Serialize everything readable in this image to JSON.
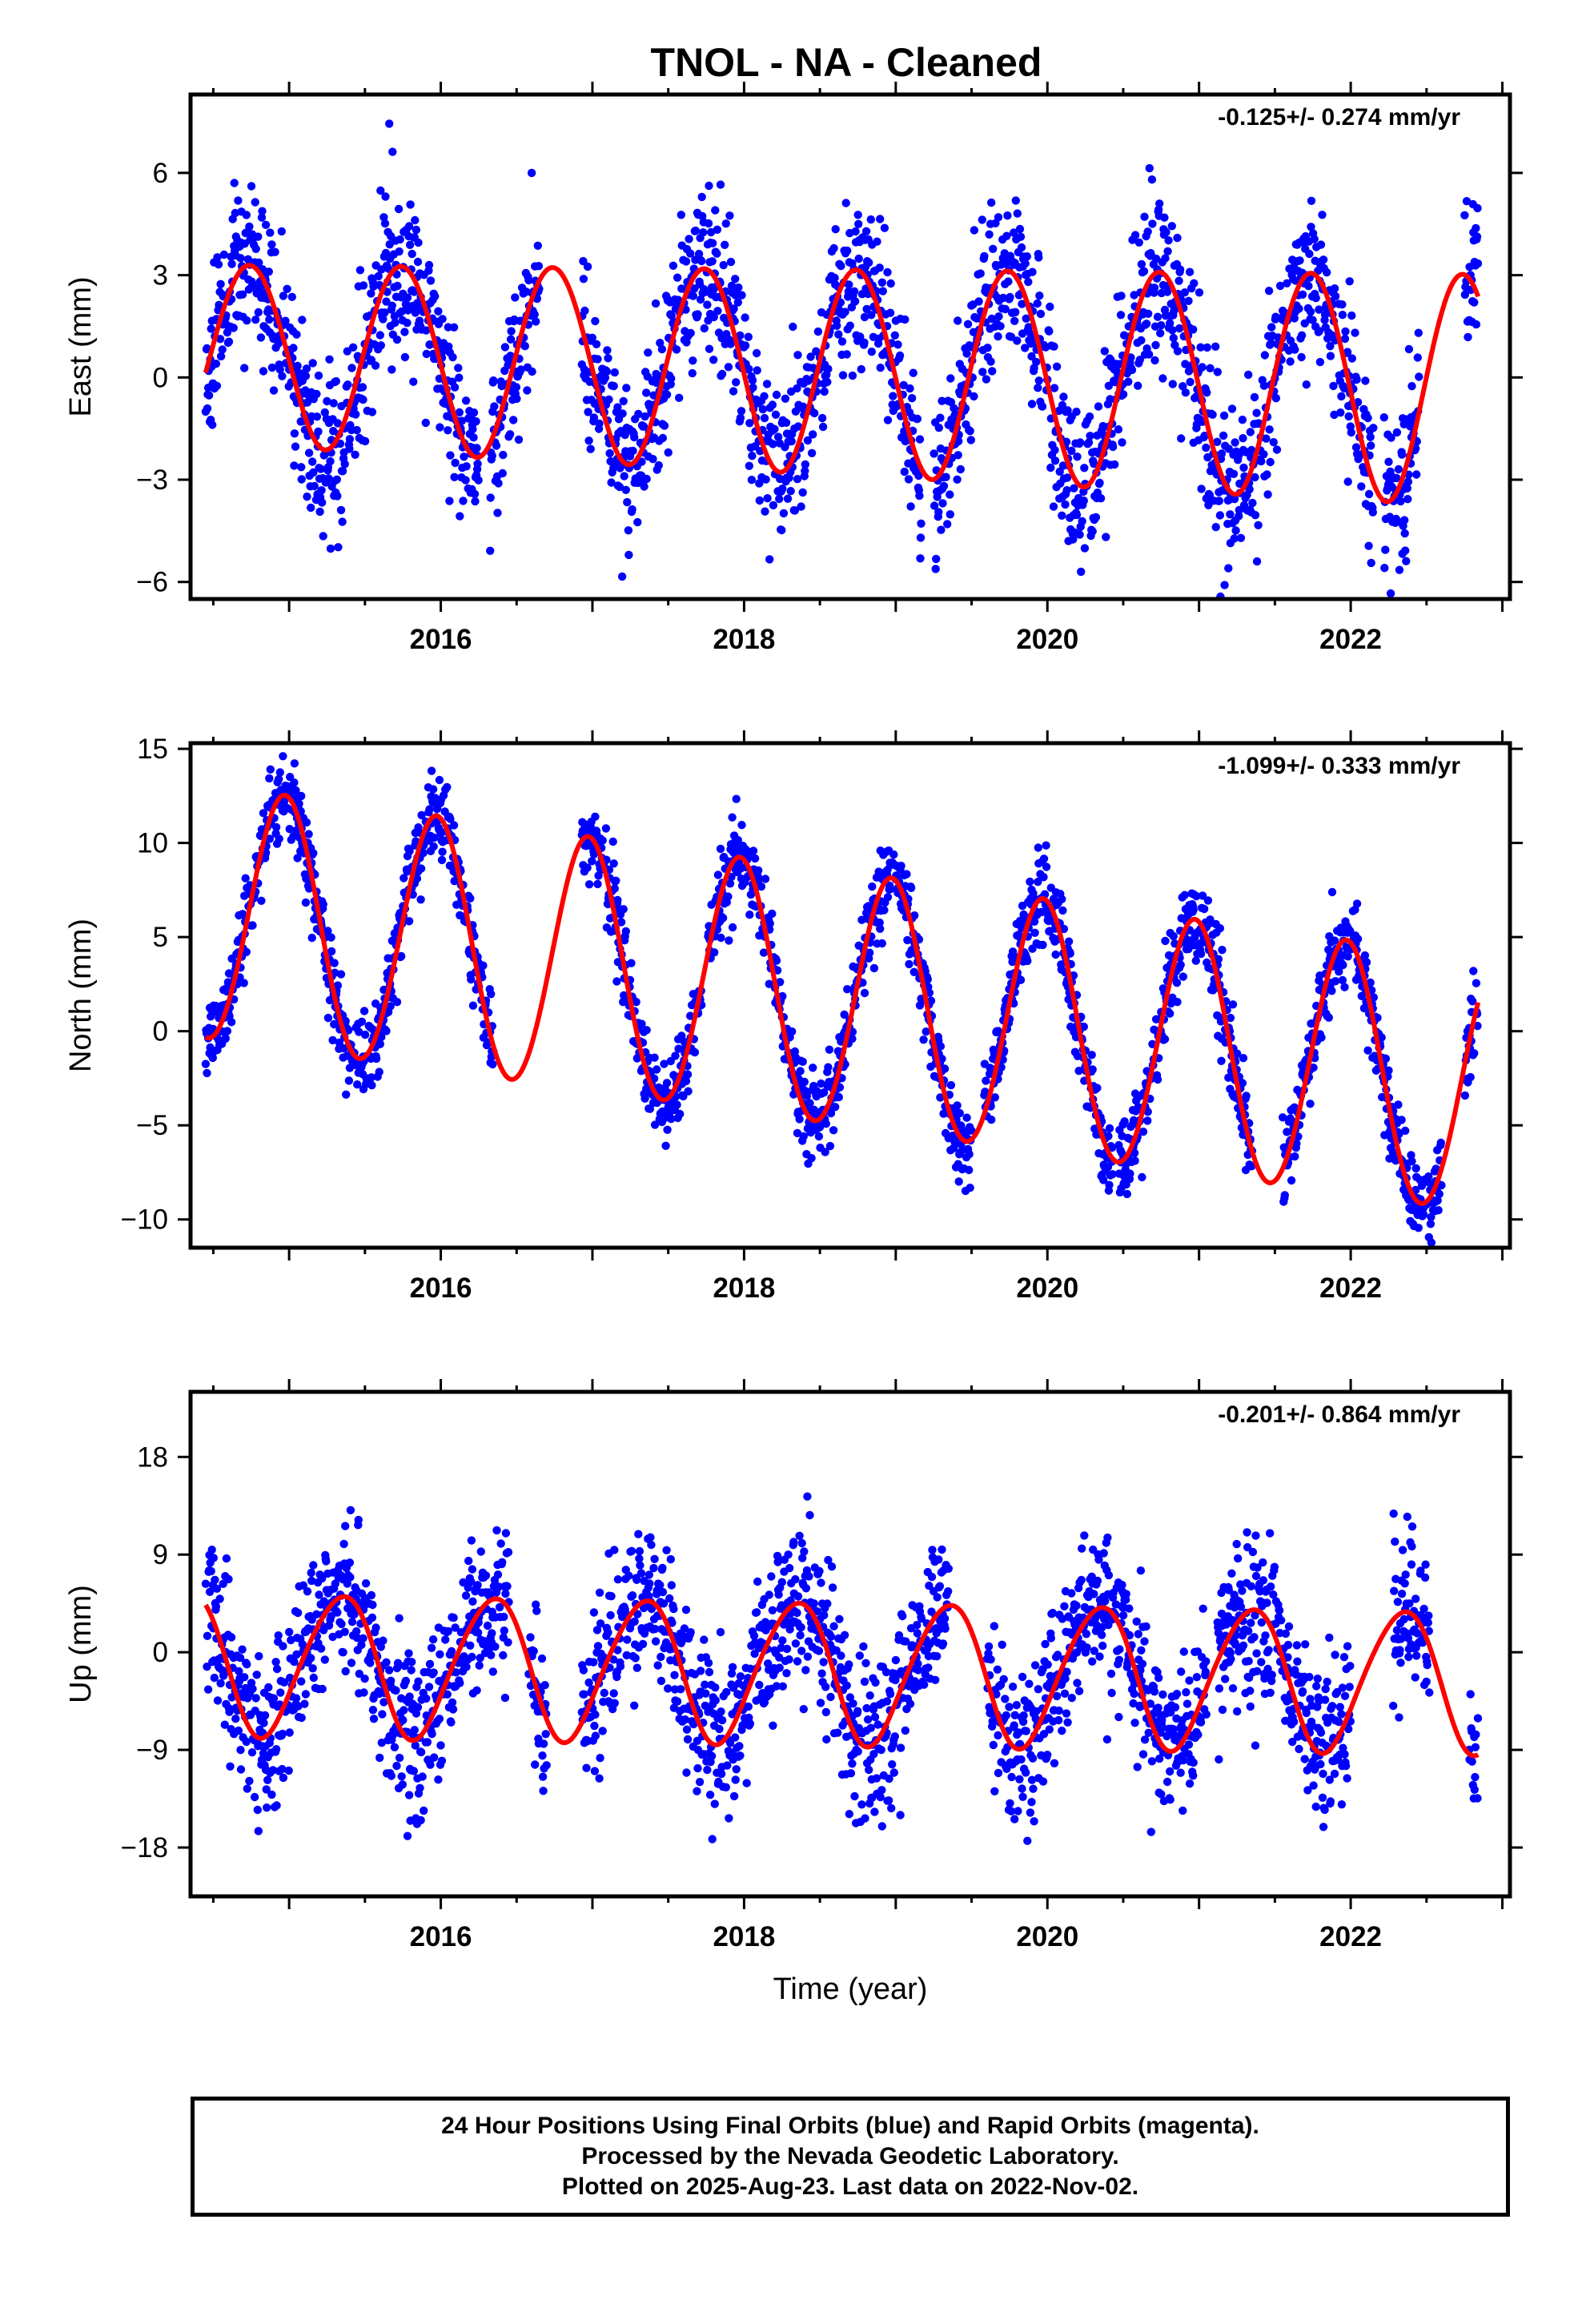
{
  "title": "TNOL  - NA - Cleaned",
  "footer": {
    "line1": "24 Hour Positions Using Final Orbits (blue) and Rapid Orbits (magenta).",
    "line2": "Processed by the Nevada Geodetic Laboratory.",
    "line3": "Plotted on 2025-Aug-23. Last data on 2022-Nov-02."
  },
  "colors": {
    "points": "#0000ff",
    "model": "#ff0000",
    "axes": "#000000"
  },
  "chart_data": [
    {
      "type": "scatter",
      "title": "TNOL  - NA - Cleaned",
      "xlabel": "",
      "ylabel": "East (mm)",
      "rate_label": "-0.125+/- 0.274 mm/yr",
      "xlim": [
        2014.35,
        2023.05
      ],
      "ylim": [
        -6.5,
        8.3
      ],
      "xticks": [
        2016,
        2018,
        2020,
        2022
      ],
      "yticks": [
        -6,
        -3,
        0,
        3,
        6
      ],
      "grid": false,
      "data_range": [
        2014.45,
        2022.84
      ],
      "data_gaps": [
        [
          2016.25,
          2016.32
        ],
        [
          2016.65,
          2016.93
        ],
        [
          2019.17,
          2019.25
        ],
        [
          2021.9,
          2021.92
        ],
        [
          2022.15,
          2022.22
        ],
        [
          2022.45,
          2022.75
        ]
      ],
      "scatter_sigma": 1.2,
      "seed": 11,
      "model": {
        "offset": 0.72,
        "rate": -0.125,
        "t0": 2014.45,
        "annual_cos": -0.2,
        "annual_sin": -2.62,
        "semiannual_cos": 0.05,
        "semiannual_sin": 0.0,
        "amp_growth": 0.035
      },
      "series": [
        {
          "name": "24 Hour Positions Using Final Orbits (blue)",
          "kind": "points"
        },
        {
          "name": "Model",
          "kind": "line"
        }
      ]
    },
    {
      "type": "scatter",
      "xlabel": "",
      "ylabel": "North (mm)",
      "rate_label": "-1.099+/- 0.333 mm/yr",
      "xlim": [
        2014.35,
        2023.05
      ],
      "ylim": [
        -11.5,
        15.3
      ],
      "xticks": [
        2016,
        2018,
        2020,
        2022
      ],
      "yticks": [
        -10,
        -5,
        0,
        5,
        10,
        15
      ],
      "grid": false,
      "data_range": [
        2014.45,
        2022.84
      ],
      "data_gaps": [
        [
          2016.35,
          2016.93
        ],
        [
          2017.72,
          2017.76
        ],
        [
          2019.5,
          2019.58
        ],
        [
          2020.43,
          2020.47
        ],
        [
          2021.35,
          2021.55
        ],
        [
          2022.6,
          2022.75
        ]
      ],
      "scatter_sigma": 1.1,
      "seed": 23,
      "model": {
        "offset": 6.2,
        "rate": -1.099,
        "t0": 2014.45,
        "annual_cos": 6.6,
        "annual_sin": -1.3,
        "semiannual_cos": 0.2,
        "semiannual_sin": 0.0,
        "amp_growth": 0.0
      },
      "series": [
        {
          "name": "24 Hour Positions Using Final Orbits (blue)",
          "kind": "points"
        },
        {
          "name": "Model",
          "kind": "line"
        }
      ]
    },
    {
      "type": "scatter",
      "xlabel": "Time (year)",
      "ylabel": "Up (mm)",
      "rate_label": "-0.201+/- 0.864 mm/yr",
      "xlim": [
        2014.35,
        2023.05
      ],
      "ylim": [
        -22.5,
        24.0
      ],
      "xticks": [
        2016,
        2018,
        2020,
        2022
      ],
      "yticks": [
        -18,
        -9,
        0,
        9,
        18
      ],
      "grid": false,
      "data_range": [
        2014.45,
        2022.84
      ],
      "data_gaps": [
        [
          2016.45,
          2016.58
        ],
        [
          2016.7,
          2016.93
        ],
        [
          2019.35,
          2019.6
        ],
        [
          2021.05,
          2021.12
        ],
        [
          2022.0,
          2022.28
        ],
        [
          2022.52,
          2022.78
        ]
      ],
      "scatter_sigma": 3.6,
      "seed": 37,
      "model": {
        "offset": -1.0,
        "rate": -0.201,
        "t0": 2014.45,
        "annual_cos": -3.3,
        "annual_sin": 5.6,
        "semiannual_cos": 0.6,
        "semiannual_sin": 0.0,
        "amp_growth": 0.0
      },
      "series": [
        {
          "name": "24 Hour Positions Using Final Orbits (blue)",
          "kind": "points"
        },
        {
          "name": "Model",
          "kind": "line"
        }
      ]
    }
  ]
}
